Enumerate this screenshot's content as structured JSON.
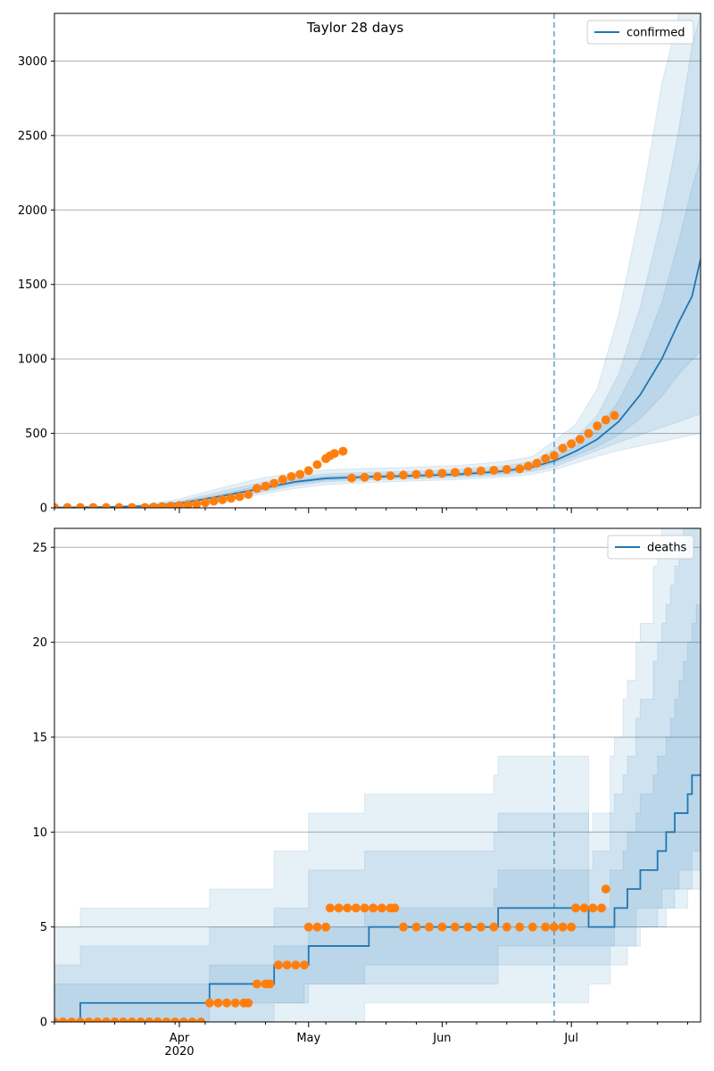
{
  "figure": {
    "title": "Taylor 28 days",
    "forecast_start": "2020-06-27",
    "colors": {
      "model_line": "#1f77b4",
      "observed_points": "#ff7f0e",
      "band": "#1f77b4",
      "grid": "#b0b0b0",
      "forecast_divider": "#1f77b4"
    },
    "x_ticks": [
      {
        "date": "2020-04-01",
        "label": "Apr",
        "sublabel": "2020"
      },
      {
        "date": "2020-05-01",
        "label": "May",
        "sublabel": ""
      },
      {
        "date": "2020-06-01",
        "label": "Jun",
        "sublabel": ""
      },
      {
        "date": "2020-07-01",
        "label": "Jul",
        "sublabel": ""
      }
    ],
    "xlim": [
      "2020-03-03",
      "2020-07-31"
    ]
  },
  "chart_data": [
    {
      "type": "line",
      "legend": "confirmed",
      "legend_position": "top-right",
      "grid": "horizontal",
      "ylim": [
        0,
        3320
      ],
      "y_ticks": [
        0,
        500,
        1000,
        1500,
        2000,
        2500,
        3000
      ],
      "model": {
        "x": [
          "2020-03-03",
          "2020-03-15",
          "2020-03-25",
          "2020-04-01",
          "2020-04-10",
          "2020-04-20",
          "2020-04-28",
          "2020-05-05",
          "2020-05-15",
          "2020-05-25",
          "2020-06-05",
          "2020-06-15",
          "2020-06-22",
          "2020-06-27",
          "2020-07-02",
          "2020-07-07",
          "2020-07-12",
          "2020-07-17",
          "2020-07-22",
          "2020-07-26",
          "2020-07-29",
          "2020-07-31"
        ],
        "y": [
          2,
          5,
          12,
          30,
          75,
          130,
          175,
          198,
          208,
          215,
          225,
          245,
          275,
          315,
          380,
          460,
          580,
          760,
          1000,
          1250,
          1420,
          1670
        ]
      },
      "bands": [
        {
          "name": "band-outer",
          "lower": [
            0,
            1,
            3,
            10,
            40,
            90,
            130,
            155,
            170,
            180,
            190,
            205,
            225,
            255,
            300,
            345,
            385,
            415,
            445,
            470,
            490,
            500
          ],
          "upper": [
            5,
            10,
            25,
            60,
            130,
            200,
            235,
            255,
            265,
            272,
            285,
            310,
            345,
            450,
            560,
            800,
            1300,
            2000,
            2850,
            3320,
            3320,
            3320
          ]
        },
        {
          "name": "band-middle",
          "lower": [
            0,
            2,
            6,
            18,
            55,
            105,
            150,
            175,
            188,
            195,
            205,
            220,
            245,
            275,
            330,
            385,
            440,
            490,
            540,
            580,
            610,
            630
          ],
          "upper": [
            4,
            8,
            18,
            45,
            105,
            170,
            210,
            228,
            238,
            245,
            258,
            280,
            310,
            395,
            470,
            620,
            900,
            1350,
            1950,
            2550,
            3100,
            3320
          ]
        },
        {
          "name": "band-inner",
          "lower": [
            1,
            3,
            9,
            24,
            65,
            118,
            162,
            186,
            198,
            205,
            215,
            232,
            260,
            300,
            350,
            410,
            490,
            600,
            750,
            900,
            990,
            1050
          ],
          "upper": [
            3,
            7,
            15,
            38,
            88,
            150,
            192,
            212,
            220,
            227,
            237,
            258,
            292,
            340,
            415,
            530,
            720,
            1000,
            1380,
            1800,
            2150,
            2350
          ]
        }
      ],
      "observed": {
        "x": [
          "2020-03-03",
          "2020-03-06",
          "2020-03-09",
          "2020-03-12",
          "2020-03-15",
          "2020-03-18",
          "2020-03-21",
          "2020-03-24",
          "2020-03-26",
          "2020-03-28",
          "2020-03-30",
          "2020-04-01",
          "2020-04-03",
          "2020-04-05",
          "2020-04-07",
          "2020-04-09",
          "2020-04-11",
          "2020-04-13",
          "2020-04-15",
          "2020-04-17",
          "2020-04-19",
          "2020-04-21",
          "2020-04-23",
          "2020-04-25",
          "2020-04-27",
          "2020-04-29",
          "2020-05-01",
          "2020-05-03",
          "2020-05-05",
          "2020-05-06",
          "2020-05-07",
          "2020-05-09",
          "2020-05-11",
          "2020-05-14",
          "2020-05-17",
          "2020-05-20",
          "2020-05-23",
          "2020-05-26",
          "2020-05-29",
          "2020-06-01",
          "2020-06-04",
          "2020-06-07",
          "2020-06-10",
          "2020-06-13",
          "2020-06-16",
          "2020-06-19",
          "2020-06-21",
          "2020-06-23",
          "2020-06-25",
          "2020-06-27",
          "2020-06-29",
          "2020-07-01",
          "2020-07-03",
          "2020-07-05",
          "2020-07-07",
          "2020-07-09",
          "2020-07-11"
        ],
        "y": [
          2,
          2,
          2,
          2,
          2,
          2,
          2,
          2,
          5,
          8,
          12,
          15,
          20,
          25,
          35,
          45,
          55,
          65,
          75,
          90,
          130,
          145,
          165,
          190,
          210,
          225,
          250,
          290,
          330,
          350,
          365,
          380,
          200,
          205,
          210,
          215,
          220,
          225,
          230,
          232,
          238,
          243,
          248,
          252,
          258,
          262,
          280,
          300,
          330,
          350,
          400,
          430,
          460,
          500,
          550,
          590,
          620
        ]
      }
    },
    {
      "type": "line",
      "legend": "deaths",
      "legend_position": "top-right",
      "grid": "horizontal",
      "ylim": [
        0,
        26
      ],
      "y_ticks": [
        0,
        5,
        10,
        15,
        20,
        25
      ],
      "model": {
        "x": [
          "2020-03-03",
          "2020-03-08",
          "2020-03-09",
          "2020-04-07",
          "2020-04-08",
          "2020-04-22",
          "2020-04-23",
          "2020-04-30",
          "2020-05-01",
          "2020-05-14",
          "2020-05-15",
          "2020-06-13",
          "2020-06-14",
          "2020-06-27",
          "2020-07-05",
          "2020-07-06",
          "2020-07-10",
          "2020-07-11",
          "2020-07-13",
          "2020-07-14",
          "2020-07-16",
          "2020-07-17",
          "2020-07-20",
          "2020-07-21",
          "2020-07-22",
          "2020-07-23",
          "2020-07-24",
          "2020-07-25",
          "2020-07-26",
          "2020-07-27",
          "2020-07-28",
          "2020-07-29",
          "2020-07-30",
          "2020-07-31"
        ],
        "y": [
          0,
          0,
          1,
          1,
          2,
          2,
          3,
          3,
          4,
          4,
          5,
          5,
          6,
          6,
          5,
          5,
          5,
          6,
          6,
          7,
          7,
          8,
          8,
          9,
          9,
          10,
          10,
          11,
          11,
          11,
          12,
          13,
          13,
          13
        ]
      },
      "bands": [
        {
          "name": "band-outer",
          "lower": [
            0,
            0,
            0,
            0,
            0,
            0,
            0,
            0,
            0,
            1,
            1,
            1,
            1,
            1,
            2,
            2,
            3,
            3,
            3,
            4,
            4,
            5,
            5,
            5,
            5,
            6,
            6,
            6,
            6,
            6,
            7,
            7,
            7,
            7
          ],
          "upper": [
            5,
            5,
            6,
            6,
            7,
            7,
            9,
            9,
            11,
            12,
            12,
            13,
            14,
            14,
            10,
            11,
            14,
            15,
            17,
            18,
            20,
            21,
            24,
            25,
            26,
            26,
            26,
            26,
            26,
            26,
            26,
            26,
            26,
            26
          ]
        },
        {
          "name": "band-middle",
          "lower": [
            0,
            0,
            0,
            0,
            0,
            0,
            1,
            1,
            2,
            2,
            2,
            2,
            3,
            3,
            3,
            3,
            4,
            4,
            4,
            4,
            5,
            5,
            5,
            6,
            6,
            6,
            6,
            7,
            7,
            7,
            7,
            8,
            8,
            8
          ],
          "upper": [
            3,
            3,
            4,
            4,
            5,
            5,
            6,
            6,
            8,
            9,
            9,
            10,
            11,
            11,
            8,
            9,
            11,
            12,
            13,
            14,
            16,
            17,
            19,
            20,
            21,
            22,
            23,
            24,
            25,
            26,
            26,
            26,
            26,
            26
          ]
        },
        {
          "name": "band-inner",
          "lower": [
            0,
            0,
            0,
            0,
            1,
            1,
            1,
            2,
            2,
            3,
            3,
            3,
            4,
            4,
            4,
            4,
            4,
            5,
            5,
            5,
            6,
            6,
            6,
            6,
            7,
            7,
            7,
            7,
            8,
            8,
            8,
            9,
            9,
            9
          ],
          "upper": [
            2,
            2,
            2,
            2,
            3,
            3,
            4,
            4,
            5,
            6,
            6,
            7,
            8,
            8,
            6,
            6,
            8,
            8,
            9,
            10,
            11,
            12,
            13,
            14,
            14,
            15,
            16,
            17,
            18,
            19,
            20,
            21,
            22,
            23
          ]
        }
      ],
      "observed": {
        "x": [
          "2020-03-03",
          "2020-03-05",
          "2020-03-07",
          "2020-03-09",
          "2020-03-11",
          "2020-03-13",
          "2020-03-15",
          "2020-03-17",
          "2020-03-19",
          "2020-03-21",
          "2020-03-23",
          "2020-03-25",
          "2020-03-27",
          "2020-03-29",
          "2020-03-31",
          "2020-04-02",
          "2020-04-04",
          "2020-04-06",
          "2020-04-08",
          "2020-04-10",
          "2020-04-12",
          "2020-04-14",
          "2020-04-16",
          "2020-04-17",
          "2020-04-19",
          "2020-04-21",
          "2020-04-22",
          "2020-04-24",
          "2020-04-26",
          "2020-04-28",
          "2020-04-30",
          "2020-05-01",
          "2020-05-03",
          "2020-05-05",
          "2020-05-06",
          "2020-05-08",
          "2020-05-10",
          "2020-05-12",
          "2020-05-14",
          "2020-05-16",
          "2020-05-18",
          "2020-05-20",
          "2020-05-21",
          "2020-05-23",
          "2020-05-26",
          "2020-05-29",
          "2020-06-01",
          "2020-06-04",
          "2020-06-07",
          "2020-06-10",
          "2020-06-13",
          "2020-06-16",
          "2020-06-19",
          "2020-06-22",
          "2020-06-25",
          "2020-06-27",
          "2020-06-29",
          "2020-07-01",
          "2020-07-02",
          "2020-07-04",
          "2020-07-06",
          "2020-07-08",
          "2020-07-09"
        ],
        "y": [
          0,
          0,
          0,
          0,
          0,
          0,
          0,
          0,
          0,
          0,
          0,
          0,
          0,
          0,
          0,
          0,
          0,
          0,
          1,
          1,
          1,
          1,
          1,
          1,
          2,
          2,
          2,
          3,
          3,
          3,
          3,
          5,
          5,
          5,
          6,
          6,
          6,
          6,
          6,
          6,
          6,
          6,
          6,
          5,
          5,
          5,
          5,
          5,
          5,
          5,
          5,
          5,
          5,
          5,
          5,
          5,
          5,
          5,
          6,
          6,
          6,
          6,
          7
        ]
      }
    }
  ]
}
